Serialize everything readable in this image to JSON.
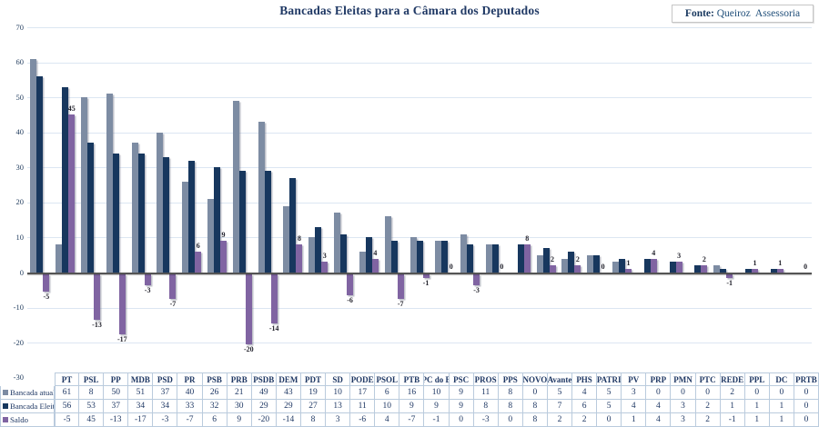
{
  "title": "Bancadas Eleitas para a Câmara dos Deputados",
  "source": {
    "label": "Fonte: ",
    "value": "Queiroz  Assessoria"
  },
  "chart_data": {
    "type": "bar",
    "title": "Bancadas Eleitas para a Câmara dos Deputados",
    "categories": [
      "PT",
      "PSL",
      "PP",
      "MDB",
      "PSD",
      "PR",
      "PSB",
      "PRB",
      "PSDB",
      "DEM",
      "PDT",
      "SD",
      "PODE",
      "PSOL",
      "PTB",
      "PC do B",
      "PSC",
      "PROS",
      "PPS",
      "NOVO",
      "Avante",
      "PHS",
      "PATRI",
      "PV",
      "PRP",
      "PMN",
      "PTC",
      "REDE",
      "PPL",
      "DC",
      "PRTB"
    ],
    "series": [
      {
        "name": "Bancada atual",
        "color": "#7d8ca3",
        "values": [
          61,
          8,
          50,
          51,
          37,
          40,
          26,
          21,
          49,
          43,
          19,
          10,
          17,
          6,
          16,
          10,
          9,
          11,
          8,
          0,
          5,
          4,
          5,
          3,
          0,
          0,
          0,
          2,
          0,
          0,
          0
        ]
      },
      {
        "name": "Bancada Eleita",
        "color": "#17375e",
        "values": [
          56,
          53,
          37,
          34,
          34,
          33,
          32,
          30,
          29,
          29,
          27,
          13,
          11,
          10,
          9,
          9,
          9,
          8,
          8,
          8,
          7,
          6,
          5,
          4,
          4,
          3,
          2,
          1,
          1,
          1,
          0
        ]
      },
      {
        "name": "Saldo",
        "color": "#8064a2",
        "data_labels": true,
        "values": [
          -5,
          45,
          -13,
          -17,
          -3,
          -7,
          6,
          9,
          -20,
          -14,
          8,
          3,
          -6,
          4,
          -7,
          -1,
          0,
          -3,
          0,
          8,
          2,
          2,
          0,
          1,
          4,
          3,
          2,
          -1,
          1,
          1,
          0
        ]
      }
    ],
    "ylim": [
      -30,
      70
    ],
    "ytick_interval": 10,
    "yticks": [
      70,
      60,
      50,
      40,
      30,
      20,
      10,
      0,
      -10,
      -20,
      -30
    ],
    "grid": true,
    "legend_position": "table-rows-left"
  }
}
